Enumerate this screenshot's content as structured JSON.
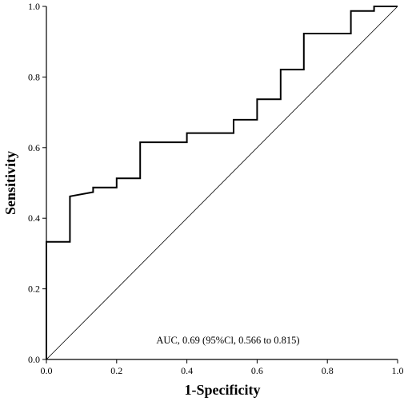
{
  "chart_data": {
    "type": "line",
    "xlabel": "1-Specificity",
    "ylabel": "Sensitivity",
    "xlim": [
      0,
      1
    ],
    "ylim": [
      0,
      1
    ],
    "xticks": [
      "0.0",
      "0.2",
      "0.4",
      "0.6",
      "0.8",
      "1.0"
    ],
    "yticks": [
      "0.0",
      "0.2",
      "0.4",
      "0.6",
      "0.8",
      "1.0"
    ],
    "grid": false,
    "annotation": "AUC, 0.69 (95%Cl, 0.566 to 0.815)",
    "series": [
      {
        "kind": "roc-step",
        "color": "#000000",
        "x": [
          0.0,
          0.0,
          0.067,
          0.067,
          0.133,
          0.133,
          0.2,
          0.2,
          0.267,
          0.267,
          0.4,
          0.4,
          0.533,
          0.533,
          0.6,
          0.6,
          0.667,
          0.667,
          0.733,
          0.733,
          0.867,
          0.867,
          0.933,
          0.933,
          1.0
        ],
        "y": [
          0.0,
          0.333,
          0.333,
          0.462,
          0.474,
          0.487,
          0.487,
          0.513,
          0.513,
          0.615,
          0.615,
          0.641,
          0.641,
          0.679,
          0.679,
          0.737,
          0.737,
          0.821,
          0.821,
          0.923,
          0.923,
          0.987,
          0.987,
          1.0,
          1.0
        ]
      },
      {
        "kind": "reference",
        "color": "#000000",
        "x": [
          0,
          1
        ],
        "y": [
          0,
          1
        ]
      }
    ]
  }
}
